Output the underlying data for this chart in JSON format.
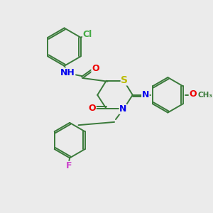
{
  "bg_color": "#ebebeb",
  "atom_colors": {
    "C": "#3a7a3a",
    "N": "#0000ee",
    "O": "#ee0000",
    "S": "#bbbb00",
    "F": "#cc44cc",
    "Cl": "#44aa44",
    "H": "#555555"
  },
  "bond_color": "#3a7a3a",
  "font_size": 9
}
